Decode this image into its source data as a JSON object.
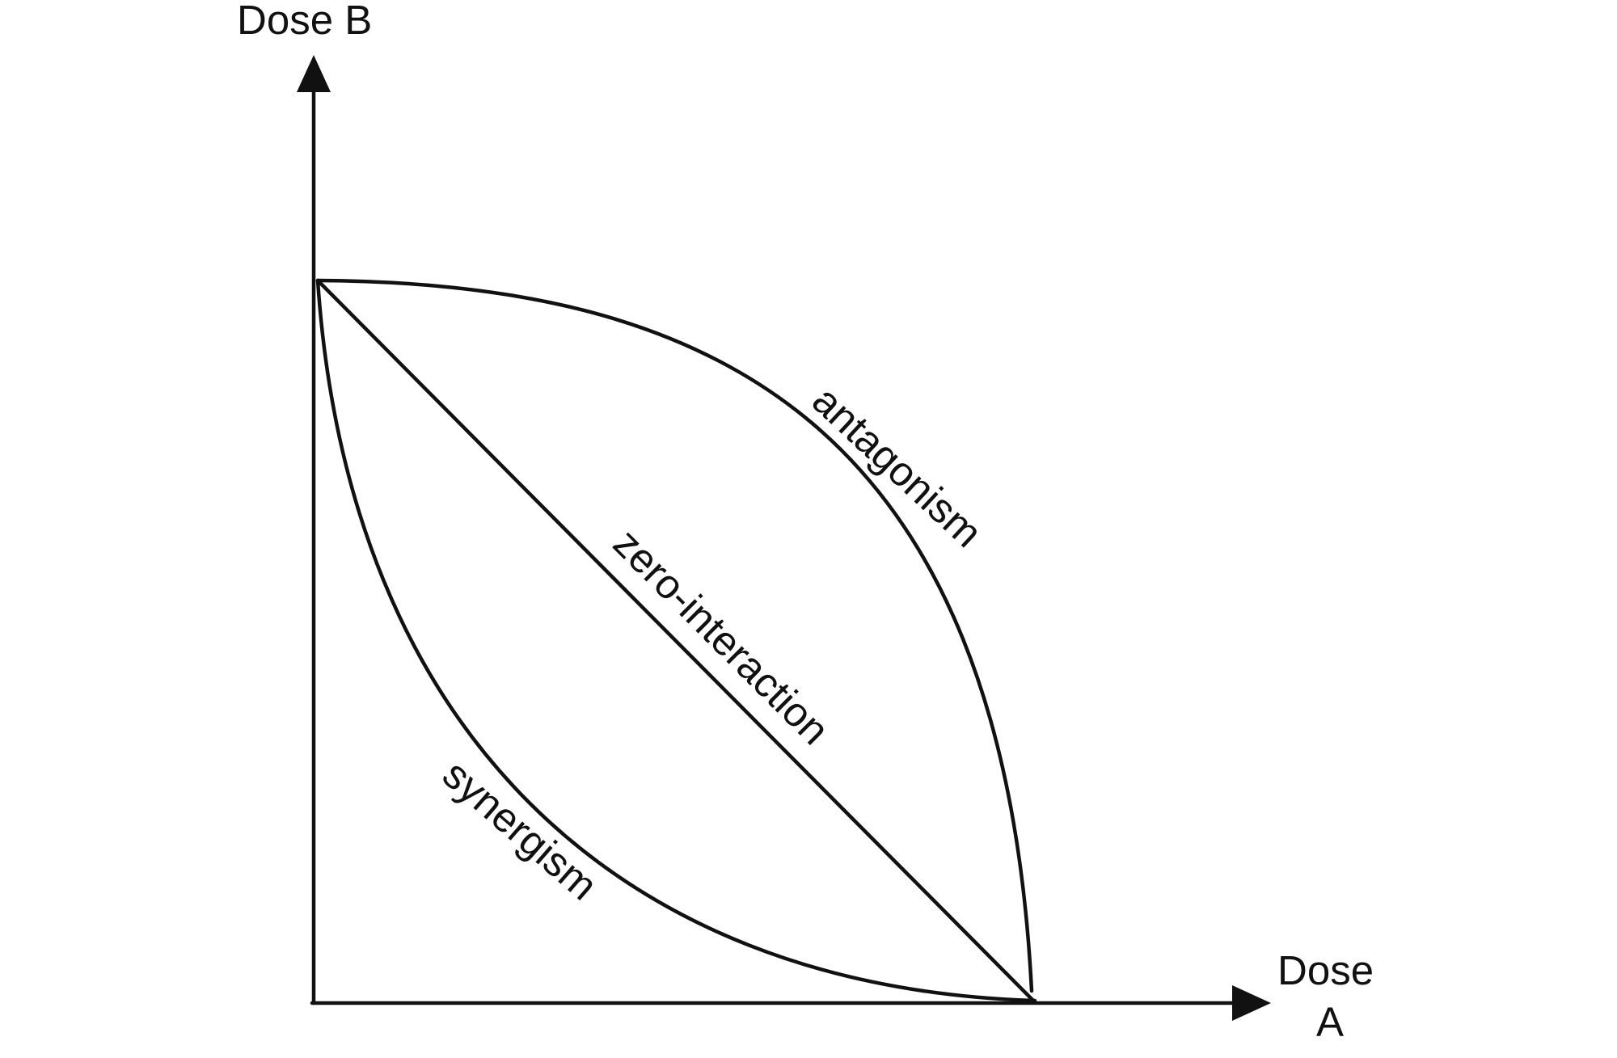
{
  "axes": {
    "y_label": "Dose B",
    "x_label_line1": "Dose",
    "x_label_line2": "A"
  },
  "curves": {
    "antagonism": "antagonism",
    "zero_interaction": "zero-interaction",
    "synergism": "synergism"
  },
  "colors": {
    "ink": "#111111",
    "background": "#ffffff"
  }
}
